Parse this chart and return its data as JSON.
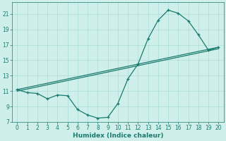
{
  "xlabel": "Humidex (Indice chaleur)",
  "bg_color": "#cff0ea",
  "grid_color": "#aaddd6",
  "line_color": "#1a7a6e",
  "xlim": [
    -0.5,
    20.5
  ],
  "ylim": [
    7,
    22.5
  ],
  "xticks": [
    0,
    1,
    2,
    3,
    4,
    5,
    6,
    7,
    8,
    9,
    10,
    11,
    12,
    13,
    14,
    15,
    16,
    17,
    18,
    19,
    20
  ],
  "yticks": [
    7,
    9,
    11,
    13,
    15,
    17,
    19,
    21
  ],
  "curve_x": [
    0,
    1,
    2,
    3,
    4,
    5,
    6,
    7,
    8,
    9,
    10,
    11,
    12,
    13,
    14,
    15,
    16,
    17,
    18,
    19,
    20
  ],
  "curve1_y": [
    11.2,
    10.8,
    10.7,
    10.0,
    10.5,
    10.4,
    8.6,
    7.9,
    7.5,
    7.6,
    9.4,
    12.6,
    14.5,
    17.8,
    20.2,
    21.5,
    21.1,
    20.1,
    18.3,
    16.3,
    16.7
  ],
  "line2_x": [
    0,
    20
  ],
  "line2_y": [
    11.2,
    16.7
  ],
  "line3_x": [
    0,
    20
  ],
  "line3_y": [
    11.0,
    16.5
  ]
}
